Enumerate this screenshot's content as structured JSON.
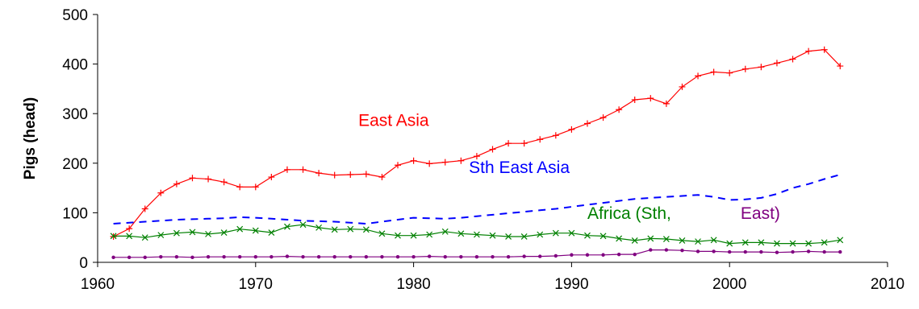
{
  "chart_data": {
    "type": "line",
    "title": "",
    "xlabel": "",
    "ylabel": "Pigs (head)",
    "xlim": [
      1960,
      2010
    ],
    "ylim": [
      0,
      500
    ],
    "x_ticks": [
      1960,
      1970,
      1980,
      1990,
      2000,
      2010
    ],
    "y_ticks": [
      0,
      100,
      200,
      300,
      400,
      500
    ],
    "grid": false,
    "legend": "none",
    "x": [
      1961,
      1962,
      1963,
      1964,
      1965,
      1966,
      1967,
      1968,
      1969,
      1970,
      1971,
      1972,
      1973,
      1974,
      1975,
      1976,
      1977,
      1978,
      1979,
      1980,
      1981,
      1982,
      1983,
      1984,
      1985,
      1986,
      1987,
      1988,
      1989,
      1990,
      1991,
      1992,
      1993,
      1994,
      1995,
      1996,
      1997,
      1998,
      1999,
      2000,
      2001,
      2002,
      2003,
      2004,
      2005,
      2006,
      2007
    ],
    "series": [
      {
        "color": "#ff0000",
        "marker": "plus",
        "line_style": "solid",
        "values": [
          52,
          68,
          108,
          140,
          158,
          170,
          168,
          162,
          152,
          152,
          172,
          187,
          187,
          180,
          176,
          177,
          178,
          172,
          196,
          205,
          199,
          202,
          205,
          214,
          228,
          240,
          240,
          248,
          256,
          268,
          280,
          292,
          308,
          328,
          331,
          320,
          354,
          376,
          384,
          382,
          390,
          394,
          402,
          410,
          426,
          429,
          396
        ]
      },
      {
        "color": "#0000ff",
        "marker": "none",
        "line_style": "dashed",
        "values": [
          78,
          80,
          82,
          84,
          86,
          87,
          88,
          89,
          91,
          90,
          88,
          86,
          84,
          83,
          82,
          80,
          78,
          82,
          86,
          90,
          89,
          88,
          90,
          93,
          96,
          99,
          102,
          105,
          108,
          112,
          116,
          120,
          124,
          128,
          130,
          132,
          134,
          136,
          132,
          126,
          127,
          130,
          138,
          150,
          158,
          168,
          177
        ]
      },
      {
        "color": "#008000",
        "marker": "x",
        "line_style": "solid",
        "values": [
          53,
          53,
          50,
          55,
          59,
          61,
          57,
          60,
          67,
          64,
          60,
          72,
          76,
          70,
          66,
          67,
          66,
          58,
          54,
          54,
          56,
          62,
          58,
          56,
          54,
          52,
          52,
          56,
          59,
          59,
          54,
          53,
          48,
          44,
          48,
          47,
          44,
          42,
          45,
          38,
          40,
          40,
          38,
          38,
          38,
          40,
          45
        ]
      },
      {
        "color": "#800080",
        "marker": "dot",
        "line_style": "solid",
        "values": [
          10,
          10,
          10,
          11,
          11,
          10,
          11,
          11,
          11,
          11,
          11,
          12,
          11,
          11,
          11,
          11,
          11,
          11,
          11,
          11,
          12,
          11,
          11,
          11,
          11,
          11,
          12,
          12,
          13,
          15,
          15,
          15,
          16,
          16,
          25,
          25,
          24,
          22,
          22,
          21,
          21,
          21,
          20,
          21,
          22,
          21,
          21
        ]
      }
    ],
    "annotations": [
      {
        "text": "East Asia",
        "color": "#ff0000",
        "at": [
          1976.5,
          275
        ]
      },
      {
        "text": "Sth East Asia",
        "color": "#0000ff",
        "at": [
          1983.5,
          180
        ]
      },
      {
        "text": "Africa (Sth, ",
        "color": "#008000",
        "at": [
          1991,
          88
        ]
      },
      {
        "text": "East)",
        "color": "#800080",
        "at": [
          2000.7,
          88
        ]
      }
    ]
  }
}
